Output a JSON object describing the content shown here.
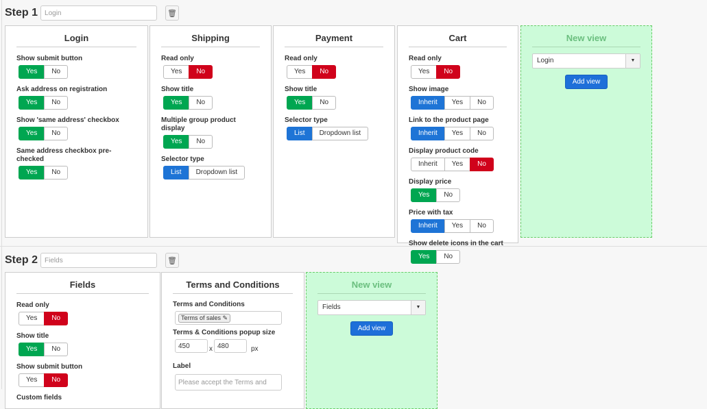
{
  "steps": [
    {
      "title": "Step 1",
      "input_value": "Login"
    },
    {
      "title": "Step 2",
      "input_value": "Fields"
    }
  ],
  "colors": {
    "yes": "#00a651",
    "no": "#d0021b",
    "selected": "#1e74d6",
    "new_view_bg": "#ccfbd9"
  },
  "panels_step1": [
    {
      "title": "Login",
      "fields": [
        {
          "label": "Show submit button",
          "options": [
            "Yes",
            "No"
          ],
          "selected": "Yes"
        },
        {
          "label": "Ask address on registration",
          "options": [
            "Yes",
            "No"
          ],
          "selected": "Yes"
        },
        {
          "label": "Show 'same address' checkbox",
          "options": [
            "Yes",
            "No"
          ],
          "selected": "Yes"
        },
        {
          "label": "Same address checkbox pre-checked",
          "options": [
            "Yes",
            "No"
          ],
          "selected": "Yes"
        }
      ]
    },
    {
      "title": "Shipping",
      "fields": [
        {
          "label": "Read only",
          "options": [
            "Yes",
            "No"
          ],
          "selected": "No"
        },
        {
          "label": "Show title",
          "options": [
            "Yes",
            "No"
          ],
          "selected": "Yes"
        },
        {
          "label": "Multiple group product display",
          "options": [
            "Yes",
            "No"
          ],
          "selected": "Yes"
        },
        {
          "label": "Selector type",
          "options": [
            "List",
            "Dropdown list"
          ],
          "selected": "List"
        }
      ]
    },
    {
      "title": "Payment",
      "fields": [
        {
          "label": "Read only",
          "options": [
            "Yes",
            "No"
          ],
          "selected": "No"
        },
        {
          "label": "Show title",
          "options": [
            "Yes",
            "No"
          ],
          "selected": "Yes"
        },
        {
          "label": "Selector type",
          "options": [
            "List",
            "Dropdown list"
          ],
          "selected": "List"
        }
      ]
    },
    {
      "title": "Cart",
      "fields": [
        {
          "label": "Read only",
          "options": [
            "Yes",
            "No"
          ],
          "selected": "No"
        },
        {
          "label": "Show image",
          "options": [
            "Inherit",
            "Yes",
            "No"
          ],
          "selected": "Inherit"
        },
        {
          "label": "Link to the product page",
          "options": [
            "Inherit",
            "Yes",
            "No"
          ],
          "selected": "Inherit"
        },
        {
          "label": "Display product code",
          "options": [
            "Inherit",
            "Yes",
            "No"
          ],
          "selected": "No"
        },
        {
          "label": "Display price",
          "options": [
            "Yes",
            "No"
          ],
          "selected": "Yes"
        },
        {
          "label": "Price with tax",
          "options": [
            "Inherit",
            "Yes",
            "No"
          ],
          "selected": "Inherit"
        },
        {
          "label": "Show delete icons in the cart",
          "options": [
            "Yes",
            "No"
          ],
          "selected": "Yes"
        }
      ]
    }
  ],
  "new_view_step1": {
    "title": "New view",
    "select_value": "Login",
    "button": "Add view"
  },
  "panels_step2": [
    {
      "title": "Fields",
      "fields": [
        {
          "label": "Read only",
          "options": [
            "Yes",
            "No"
          ],
          "selected": "No"
        },
        {
          "label": "Show title",
          "options": [
            "Yes",
            "No"
          ],
          "selected": "Yes"
        },
        {
          "label": "Show submit button",
          "options": [
            "Yes",
            "No"
          ],
          "selected": "No"
        }
      ],
      "extra_label": "Custom fields"
    }
  ],
  "terms": {
    "title": "Terms and Conditions",
    "tc_label": "Terms and Conditions",
    "tc_tag": "Terms of sales",
    "popup_label": "Terms & Conditions popup size",
    "width": "450",
    "x": "x",
    "height": "480",
    "unit": "px",
    "label_label": "Label",
    "label_placeholder": "Please accept the Terms and"
  },
  "new_view_step2": {
    "title": "New view",
    "select_value": "Fields",
    "button": "Add view"
  }
}
